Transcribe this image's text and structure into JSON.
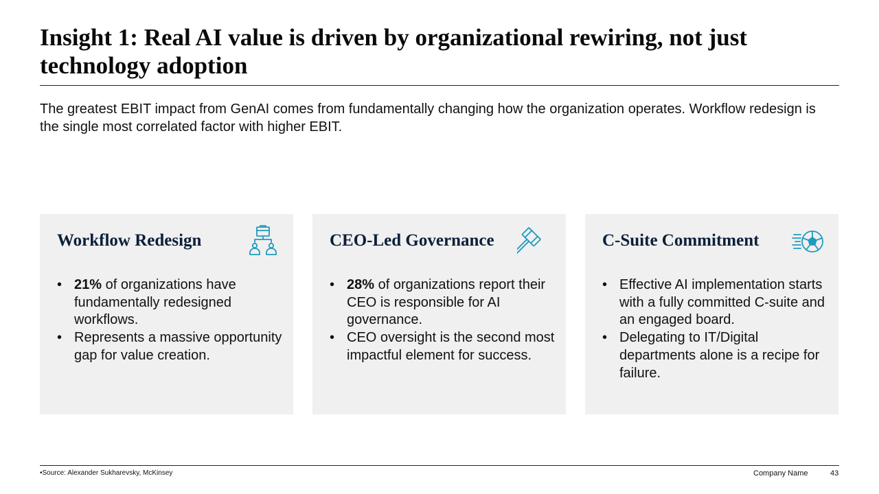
{
  "slide": {
    "title": "Insight 1: Real AI value is driven by organizational rewiring, not just technology adoption",
    "subtitle": "The greatest EBIT impact from GenAI comes from fundamentally changing how the organization operates. Workflow redesign is the single most correlated factor with higher EBIT."
  },
  "cards": [
    {
      "title": "Workflow Redesign",
      "icon": "organization-chart-icon",
      "bullets": [
        {
          "bold": "21%",
          "text": " of organizations have fundamentally redesigned workflows."
        },
        {
          "bold": "",
          "text": "Represents a massive opportunity gap for value creation."
        }
      ]
    },
    {
      "title": "CEO-Led Governance",
      "icon": "gavel-icon",
      "bullets": [
        {
          "bold": "28%",
          "text": " of organizations report their CEO is responsible for AI governance."
        },
        {
          "bold": "",
          "text": "CEO oversight is the second most impactful element for success."
        }
      ]
    },
    {
      "title": "C-Suite Commitment",
      "icon": "soccer-ball-motion-icon",
      "bullets": [
        {
          "bold": "",
          "text": "Effective AI implementation starts with a fully committed C-suite and an engaged board."
        },
        {
          "bold": "",
          "text": "Delegating to IT/Digital departments alone is a recipe for failure."
        }
      ]
    }
  ],
  "footer": {
    "source": "•Source: Alexander Sukharevsky, McKinsey",
    "company": "Company Name",
    "page_number": "43"
  },
  "colors": {
    "card_background": "#f0f0f0",
    "card_title": "#0b1f3a",
    "icon_accent": "#1e9bbf"
  }
}
